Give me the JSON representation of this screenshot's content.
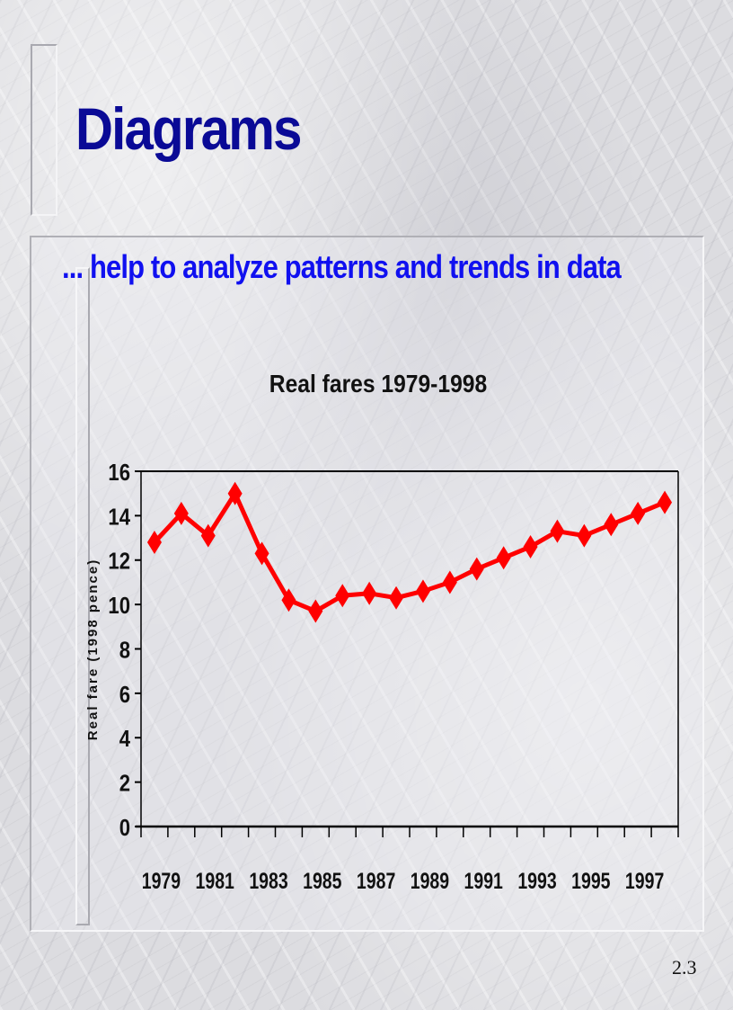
{
  "slide": {
    "title": "Diagrams",
    "subtitle": "... help to analyze patterns and trends in data",
    "page_number": "2.3"
  },
  "colors": {
    "title": "#0a0a96",
    "subtitle": "#1010f0",
    "series_line": "#ff0000",
    "axis": "#000000"
  },
  "chart_data": {
    "type": "line",
    "title": "Real fares 1979-1998",
    "xlabel": "",
    "ylabel": "Real fare (1998 pence)",
    "ylim": [
      0,
      16
    ],
    "yticks": [
      0,
      2,
      4,
      6,
      8,
      10,
      12,
      14,
      16
    ],
    "x": [
      1979,
      1980,
      1981,
      1982,
      1983,
      1984,
      1985,
      1986,
      1987,
      1988,
      1989,
      1990,
      1991,
      1992,
      1993,
      1994,
      1995,
      1996,
      1997,
      1998
    ],
    "xtick_labels": [
      "1979",
      "1981",
      "1983",
      "1985",
      "1987",
      "1989",
      "1991",
      "1993",
      "1995",
      "1997"
    ],
    "series": [
      {
        "name": "Real fare",
        "marker": "diamond",
        "color": "#ff0000",
        "values": [
          12.8,
          14.1,
          13.1,
          15.0,
          12.3,
          10.2,
          9.7,
          10.4,
          10.5,
          10.3,
          10.6,
          11.0,
          11.6,
          12.1,
          12.6,
          13.3,
          13.1,
          13.6,
          14.1,
          14.6
        ]
      }
    ],
    "grid": false,
    "legend": "none"
  }
}
